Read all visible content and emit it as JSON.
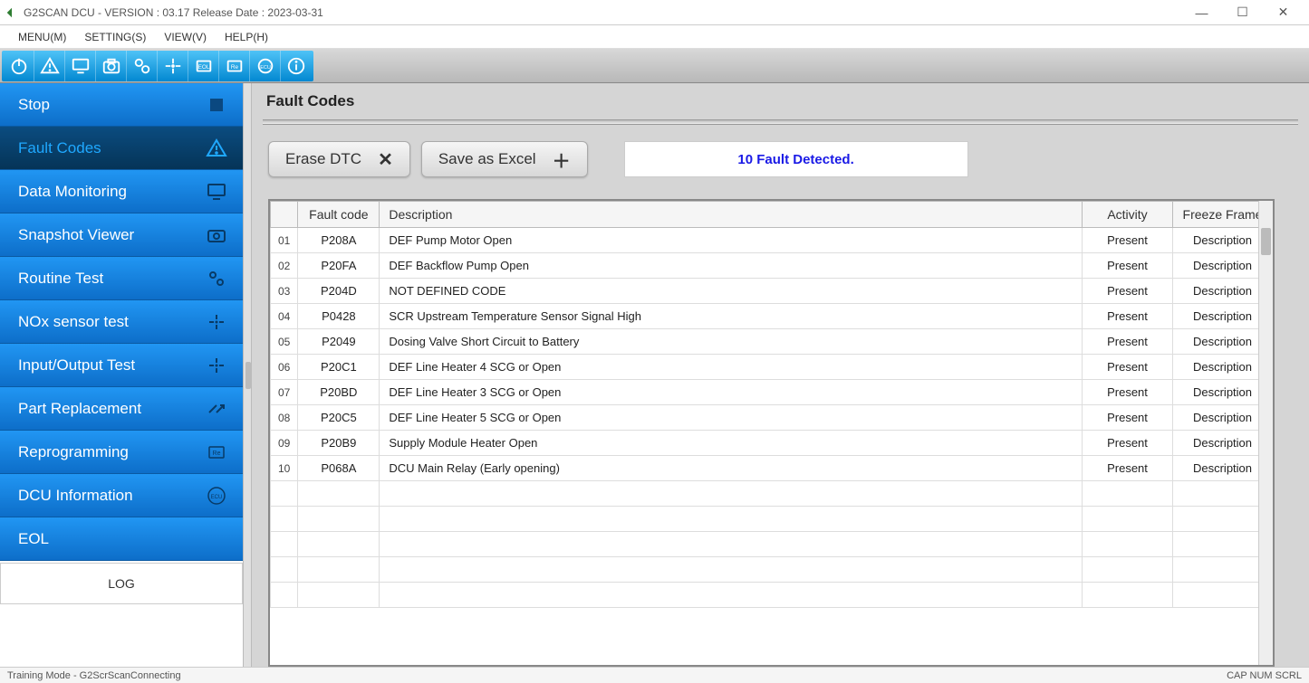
{
  "window": {
    "title": "G2SCAN DCU - VERSION : 03.17 Release Date : 2023-03-31"
  },
  "menubar": {
    "items": [
      "MENU(M)",
      "SETTING(S)",
      "VIEW(V)",
      "HELP(H)"
    ]
  },
  "sidebar": {
    "items": [
      {
        "label": "Stop",
        "icon": "stop",
        "selected": false
      },
      {
        "label": "Fault Codes",
        "icon": "warning",
        "selected": true
      },
      {
        "label": "Data Monitoring",
        "icon": "monitor",
        "selected": false
      },
      {
        "label": "Snapshot Viewer",
        "icon": "camera",
        "selected": false
      },
      {
        "label": "Routine Test",
        "icon": "gears",
        "selected": false
      },
      {
        "label": "NOx sensor test",
        "icon": "arrows",
        "selected": false
      },
      {
        "label": "Input/Output Test",
        "icon": "arrows",
        "selected": false
      },
      {
        "label": "Part Replacement",
        "icon": "swap",
        "selected": false
      },
      {
        "label": "Reprogramming",
        "icon": "re",
        "selected": false
      },
      {
        "label": "DCU Information",
        "icon": "ecu",
        "selected": false
      },
      {
        "label": "EOL",
        "icon": "",
        "selected": false
      }
    ],
    "log_label": "LOG"
  },
  "panel": {
    "title": "Fault Codes",
    "erase_label": "Erase DTC",
    "save_label": "Save as Excel",
    "fault_banner": "10 Fault Detected."
  },
  "table": {
    "columns": [
      "",
      "Fault code",
      "Description",
      "Activity",
      "Freeze Frame"
    ],
    "rows": [
      {
        "n": "01",
        "code": "P208A",
        "desc": "DEF Pump Motor Open",
        "act": "Present",
        "ff": "Description"
      },
      {
        "n": "02",
        "code": "P20FA",
        "desc": "DEF Backflow Pump Open",
        "act": "Present",
        "ff": "Description"
      },
      {
        "n": "03",
        "code": "P204D",
        "desc": "NOT DEFINED CODE",
        "act": "Present",
        "ff": "Description"
      },
      {
        "n": "04",
        "code": "P0428",
        "desc": "SCR Upstream Temperature Sensor Signal High",
        "act": "Present",
        "ff": "Description"
      },
      {
        "n": "05",
        "code": "P2049",
        "desc": "Dosing Valve Short Circuit to Battery",
        "act": "Present",
        "ff": "Description"
      },
      {
        "n": "06",
        "code": "P20C1",
        "desc": "DEF Line Heater 4 SCG or Open",
        "act": "Present",
        "ff": "Description"
      },
      {
        "n": "07",
        "code": "P20BD",
        "desc": "DEF Line Heater 3 SCG or Open",
        "act": "Present",
        "ff": "Description"
      },
      {
        "n": "08",
        "code": "P20C5",
        "desc": "DEF Line Heater 5 SCG or Open",
        "act": "Present",
        "ff": "Description"
      },
      {
        "n": "09",
        "code": "P20B9",
        "desc": "Supply Module Heater Open",
        "act": "Present",
        "ff": "Description"
      },
      {
        "n": "10",
        "code": "P068A",
        "desc": "DCU Main Relay (Early opening)",
        "act": "Present",
        "ff": "Description"
      }
    ],
    "empty_rows": 5
  },
  "statusbar": {
    "left": "Training Mode - G2ScrScanConnecting",
    "right": "CAP  NUM  SCRL"
  },
  "colors": {
    "sidebar_grad_top": "#2196f3",
    "sidebar_grad_bottom": "#0d6ec9",
    "sidebar_sel_top": "#0b4c80",
    "sidebar_sel_bottom": "#053457",
    "sidebar_sel_text": "#1fa8ff",
    "toolbar_grad_top": "#4fc3f7",
    "toolbar_grad_bottom": "#0288d1",
    "banner_text": "#1a1ae6",
    "main_bg": "#d5d5d5"
  }
}
